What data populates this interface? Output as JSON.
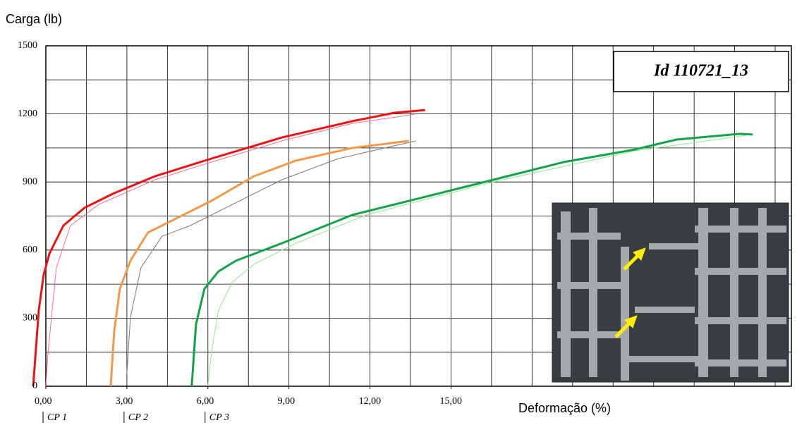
{
  "chart_data": {
    "type": "line",
    "y_label": "Carga (lb)",
    "x_label": "Deformação (%)",
    "annotation_box": "Id 110721_13",
    "xlim": [
      0,
      27.6
    ],
    "ylim": [
      0,
      1500
    ],
    "xticks": [
      {
        "value": 0,
        "label": "0,00"
      },
      {
        "value": 3,
        "label": "3,00"
      },
      {
        "value": 6,
        "label": "6,00"
      },
      {
        "value": 9,
        "label": "9,00"
      },
      {
        "value": 12,
        "label": "12,00"
      },
      {
        "value": 15,
        "label": "15,00"
      }
    ],
    "yticks": [
      0,
      300,
      600,
      900,
      1200,
      1500
    ],
    "x_grid": [
      0,
      1.5,
      3,
      4.5,
      6,
      7.5,
      9,
      10.5,
      12,
      13.5,
      15,
      16.5,
      18,
      19.5,
      21,
      22.5,
      24,
      25.5,
      27
    ],
    "y_grid": [
      0,
      150,
      300,
      450,
      600,
      750,
      900,
      1050,
      1200,
      1350,
      1500
    ],
    "grid": true,
    "markers": [
      {
        "text": "CP 1",
        "x": 0
      },
      {
        "text": "CP 2",
        "x": 3
      },
      {
        "text": "CP 3",
        "x": 6
      }
    ],
    "series": [
      {
        "color": "#f2708a",
        "line_width": 1,
        "x": [
          0,
          0.08,
          0.39,
          0.91,
          1.96,
          4.04,
          6.13,
          8.74,
          11.35,
          13.7
        ],
        "values": [
          0,
          149,
          522,
          708,
          801,
          910,
          988,
          1081,
          1158,
          1199
        ]
      },
      {
        "color": "#ee1111",
        "line_width": 3,
        "x": [
          -0.47,
          -0.26,
          -0.08,
          0.13,
          0.65,
          1.43,
          2.48,
          4.04,
          6.13,
          8.74,
          11.35,
          12.91,
          14.04
        ],
        "values": [
          0,
          335,
          491,
          584,
          708,
          786,
          848,
          925,
          1003,
          1096,
          1168,
          1205,
          1217
        ]
      },
      {
        "color": "#777777",
        "line_width": 1,
        "x": [
          3.0,
          3.13,
          3.52,
          4.3,
          5.35,
          6.91,
          8.74,
          10.83,
          13.7
        ],
        "values": [
          56,
          304,
          522,
          661,
          708,
          801,
          910,
          1003,
          1081
        ]
      },
      {
        "color": "#f39a4a",
        "line_width": 3,
        "x": [
          2.4,
          2.53,
          2.74,
          3.13,
          3.78,
          4.57,
          6.13,
          7.7,
          9.26,
          11.35,
          13.44
        ],
        "values": [
          0,
          242,
          429,
          553,
          677,
          724,
          817,
          925,
          994,
          1050,
          1081
        ]
      },
      {
        "color": "#8fe88f",
        "line_width": 1,
        "x": [
          6.0,
          6.13,
          6.39,
          6.91,
          7.7,
          9.26,
          11.87,
          16.57,
          21.79,
          25.96
        ],
        "values": [
          0,
          149,
          335,
          460,
          537,
          630,
          755,
          901,
          1037,
          1106
        ]
      },
      {
        "color": "#12a34a",
        "line_width": 3,
        "x": [
          5.4,
          5.56,
          5.87,
          6.39,
          7.04,
          8.74,
          11.35,
          13.96,
          16.57,
          19.18,
          21.79,
          23.35,
          25.7,
          26.17
        ],
        "values": [
          0,
          273,
          429,
          506,
          553,
          630,
          755,
          832,
          910,
          988,
          1043,
          1087,
          1112,
          1109
        ]
      }
    ]
  }
}
